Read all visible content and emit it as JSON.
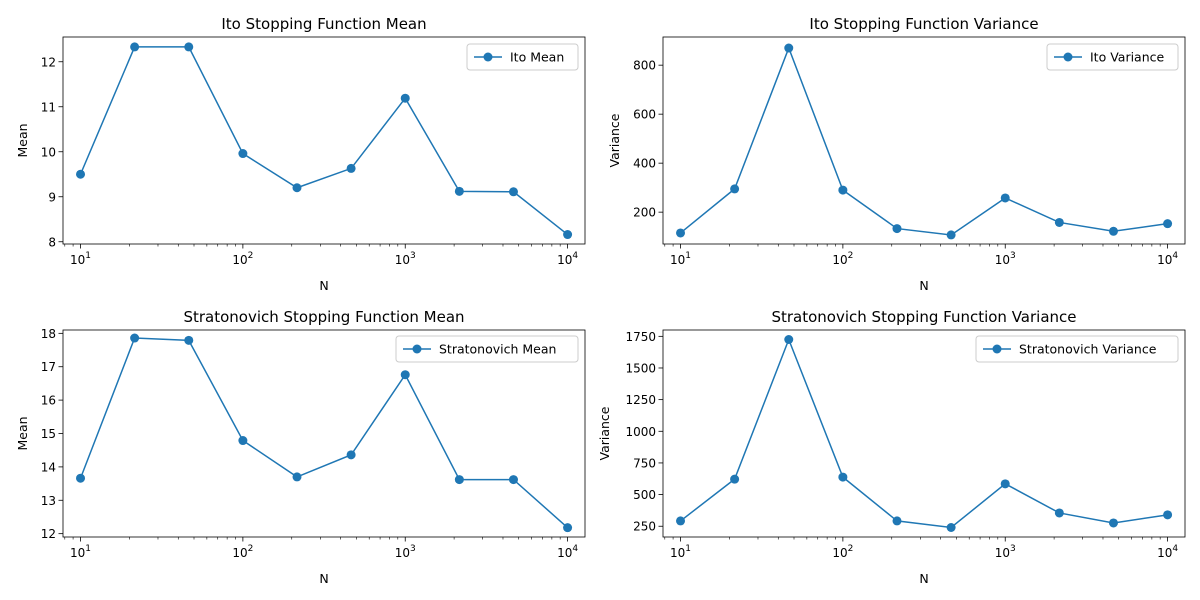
{
  "colors": {
    "series": "#1f77b4",
    "axes": "#000000",
    "legend_border": "#cccccc",
    "background": "#ffffff"
  },
  "chart_data": [
    {
      "type": "line",
      "title": "Ito Stopping Function Mean",
      "xlabel": "N",
      "ylabel": "Mean",
      "xscale": "log",
      "xlim": [
        7.8,
        12800
      ],
      "ylim": [
        7.95,
        12.55
      ],
      "x_ticks": [
        10,
        100,
        1000,
        10000
      ],
      "y_ticks": [
        8,
        9,
        10,
        11,
        12
      ],
      "y_tick_labels": [
        "8",
        "9",
        "10",
        "11",
        "12"
      ],
      "legend_position": "top-right",
      "grid": false,
      "series": [
        {
          "name": "Ito Mean",
          "marker": "circle",
          "x": [
            10,
            21.54,
            46.42,
            100,
            215.44,
            464.16,
            1000,
            2154.43,
            4641.59,
            10000
          ],
          "y": [
            9.5,
            12.33,
            12.33,
            9.96,
            9.2,
            9.63,
            11.19,
            9.12,
            9.11,
            8.16
          ]
        }
      ]
    },
    {
      "type": "line",
      "title": "Ito Stopping Function Variance",
      "xlabel": "N",
      "ylabel": "Variance",
      "xscale": "log",
      "xlim": [
        7.8,
        12800
      ],
      "ylim": [
        70,
        915
      ],
      "x_ticks": [
        10,
        100,
        1000,
        10000
      ],
      "y_ticks": [
        200,
        400,
        600,
        800
      ],
      "y_tick_labels": [
        "200",
        "400",
        "600",
        "800"
      ],
      "legend_position": "top-right",
      "grid": false,
      "series": [
        {
          "name": "Ito Variance",
          "marker": "circle",
          "x": [
            10,
            21.54,
            46.42,
            100,
            215.44,
            464.16,
            1000,
            2154.43,
            4641.59,
            10000
          ],
          "y": [
            115,
            295,
            870,
            290,
            133,
            107,
            258,
            158,
            122,
            153
          ]
        }
      ]
    },
    {
      "type": "line",
      "title": "Stratonovich Stopping Function Mean",
      "xlabel": "N",
      "ylabel": "Mean",
      "xscale": "log",
      "xlim": [
        7.8,
        12800
      ],
      "ylim": [
        11.9,
        18.1
      ],
      "x_ticks": [
        10,
        100,
        1000,
        10000
      ],
      "y_ticks": [
        12,
        13,
        14,
        15,
        16,
        17,
        18
      ],
      "y_tick_labels": [
        "12",
        "13",
        "14",
        "15",
        "16",
        "17",
        "18"
      ],
      "legend_position": "top-right",
      "grid": false,
      "series": [
        {
          "name": "Stratonovich Mean",
          "marker": "circle",
          "x": [
            10,
            21.54,
            46.42,
            100,
            215.44,
            464.16,
            1000,
            2154.43,
            4641.59,
            10000
          ],
          "y": [
            13.66,
            17.86,
            17.79,
            14.79,
            13.7,
            14.36,
            16.76,
            13.62,
            13.62,
            12.18
          ]
        }
      ]
    },
    {
      "type": "line",
      "title": "Stratonovich Stopping Function Variance",
      "xlabel": "N",
      "ylabel": "Variance",
      "xscale": "log",
      "xlim": [
        7.8,
        12800
      ],
      "ylim": [
        165,
        1800
      ],
      "x_ticks": [
        10,
        100,
        1000,
        10000
      ],
      "y_ticks": [
        250,
        500,
        750,
        1000,
        1250,
        1500,
        1750
      ],
      "y_tick_labels": [
        "250",
        "500",
        "750",
        "1000",
        "1250",
        "1500",
        "1750"
      ],
      "legend_position": "top-right",
      "grid": false,
      "series": [
        {
          "name": "Stratonovich Variance",
          "marker": "circle",
          "x": [
            10,
            21.54,
            46.42,
            100,
            215.44,
            464.16,
            1000,
            2154.43,
            4641.59,
            10000
          ],
          "y": [
            292,
            622,
            1725,
            638,
            292,
            240,
            585,
            355,
            276,
            340
          ]
        }
      ]
    }
  ]
}
